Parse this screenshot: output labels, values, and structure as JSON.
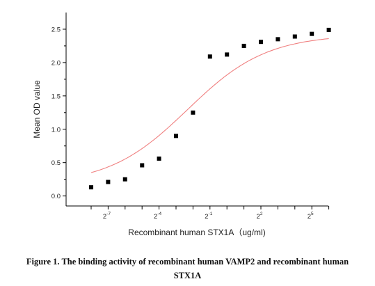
{
  "chart_data": {
    "type": "scatter",
    "xlabel": "Recombinant human  STX1A（ug/ml)",
    "ylabel": "Mean OD value",
    "x_scale": "log2",
    "ylim": [
      -0.15,
      2.75
    ],
    "x_ticks": [
      {
        "base": "2",
        "exp": "-7"
      },
      {
        "base": "2",
        "exp": "-4"
      },
      {
        "base": "2",
        "exp": "-1"
      },
      {
        "base": "2",
        "exp": "2"
      },
      {
        "base": "2",
        "exp": "5"
      }
    ],
    "y_ticks": [
      "0.0",
      "0.5",
      "1.0",
      "1.5",
      "2.0",
      "2.5"
    ],
    "grid": false,
    "marker": {
      "shape": "square",
      "color": "#000000"
    },
    "fit_curve": {
      "color": "#f08080",
      "bottom": 0.17,
      "top": 2.42,
      "ec50": 0.2,
      "hill": 0.62
    },
    "series": [
      {
        "x": [
          0.00391,
          0.00781,
          0.0156,
          0.0313,
          0.0625,
          0.125,
          0.25,
          0.5,
          1,
          2,
          4,
          8,
          16,
          32,
          64
        ],
        "y": [
          0.13,
          0.21,
          0.25,
          0.46,
          0.56,
          0.9,
          1.25,
          2.09,
          2.12,
          2.25,
          2.31,
          2.35,
          2.39,
          2.43,
          2.49
        ]
      }
    ]
  },
  "caption": {
    "line1": "Figure 1. The binding activity of recombinant human VAMP2 and recombinant human",
    "line2": "STX1A"
  }
}
